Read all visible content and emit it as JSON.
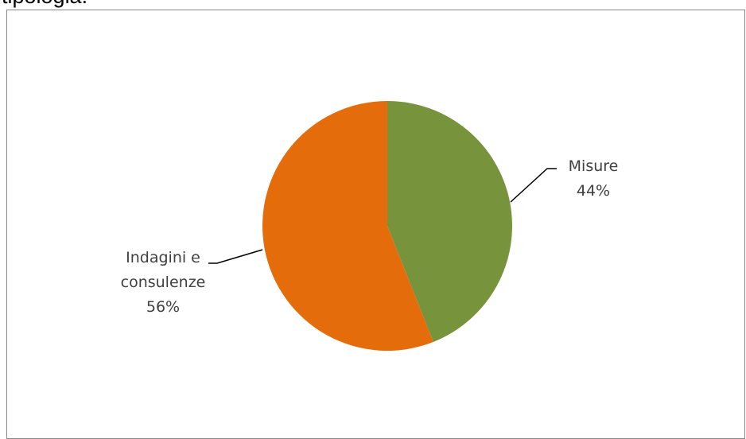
{
  "caption_fragment": "tipologia.",
  "chart_data": {
    "type": "pie",
    "title": "",
    "slices": [
      {
        "name": "Misure",
        "value": 44,
        "label_lines": [
          "Misure",
          "44%"
        ],
        "color": "#77933c"
      },
      {
        "name": "Indagini e consulenze",
        "value": 56,
        "label_lines": [
          "Indagini e",
          "consulenze",
          "56%"
        ],
        "color": "#e46c0a"
      }
    ],
    "start_angle_deg": 0,
    "direction": "clockwise"
  }
}
